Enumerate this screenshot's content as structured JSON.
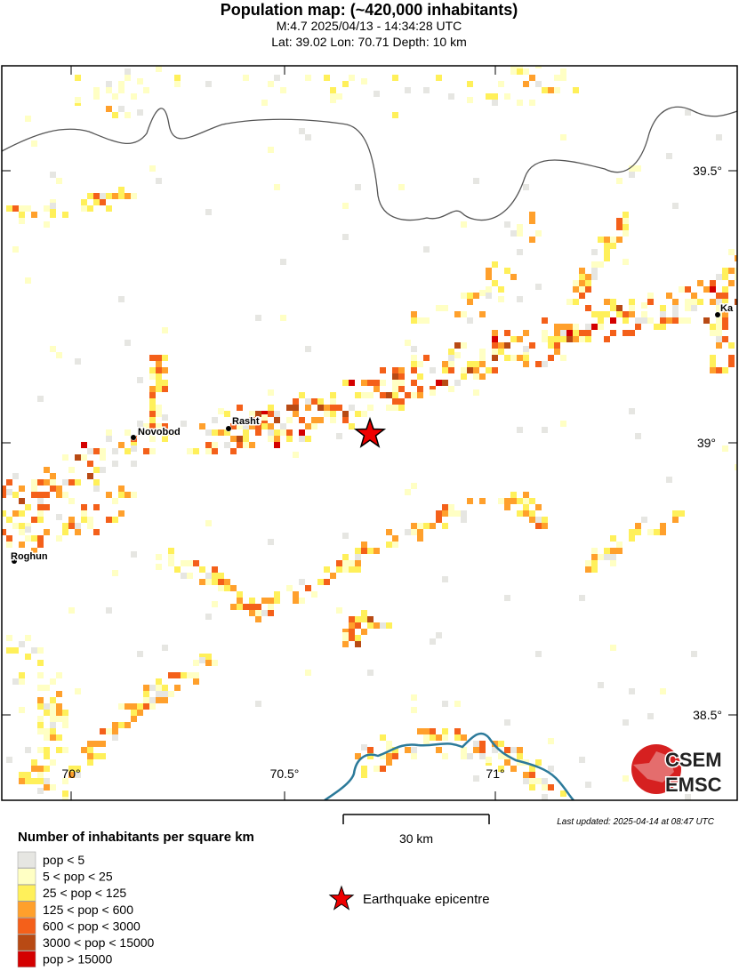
{
  "header": {
    "title": "Population map: (~420,000 inhabitants)",
    "subtitle": "M:4.7 2025/04/13 - 14:34:28 UTC",
    "location": "Lat: 39.02 Lon: 70.71 Depth: 10 km"
  },
  "map": {
    "cities": [
      "Novobod",
      "Rasht",
      "Roghun",
      "Ka"
    ],
    "lat_labels": [
      "39.5°",
      "39°",
      "38.5°"
    ],
    "lon_labels": [
      "70°",
      "70.5°",
      "71°"
    ]
  },
  "last_updated": "Last updated: 2025-04-14 at 08:47 UTC",
  "scale_bar": "30 km",
  "legend": {
    "title": "Number of inhabitants per square km",
    "items": [
      {
        "label": "pop < 5",
        "color": "#e6e6e2"
      },
      {
        "label": "5 < pop < 25",
        "color": "#ffffc4"
      },
      {
        "label": "25 < pop < 125",
        "color": "#fff05a"
      },
      {
        "label": "125 < pop < 600",
        "color": "#ffa02c"
      },
      {
        "label": "600 < pop < 3000",
        "color": "#f4601a"
      },
      {
        "label": "3000 < pop < 15000",
        "color": "#b84a14"
      },
      {
        "label": "pop > 15000",
        "color": "#d40000"
      }
    ],
    "epicentre": "Earthquake epicentre"
  },
  "logo": {
    "top": "CSEM",
    "bottom": "EMSC"
  }
}
